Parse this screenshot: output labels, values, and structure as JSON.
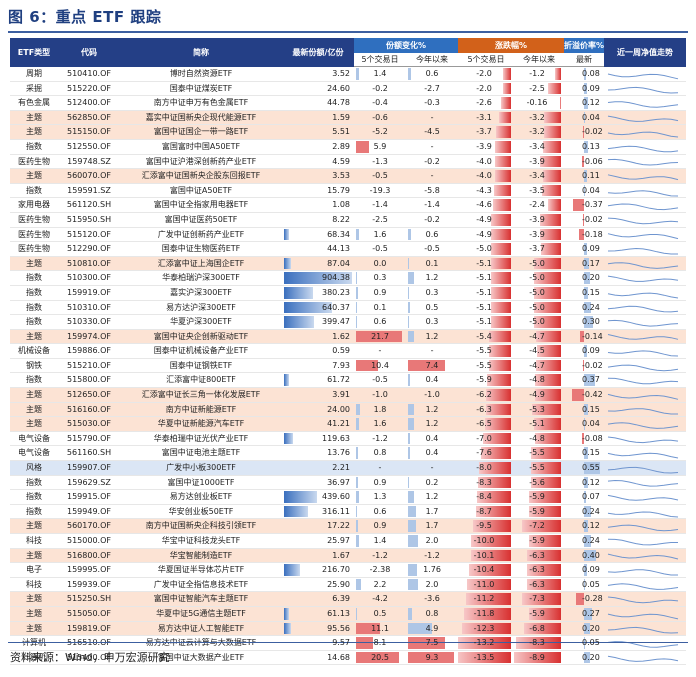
{
  "title": "图 6：重点 ETF 跟踪",
  "source": "资料来源：Wind，申万宏源研究",
  "headers": {
    "type": "ETF类型",
    "code": "代码",
    "name": "简称",
    "shares": "最新份额/亿份",
    "share_change": "份额变化%",
    "pct_change": "涨跌幅%",
    "premium": "折溢价率%",
    "trend": "近一周净值走势",
    "d5": "5个交易日",
    "ytd": "今年以来",
    "d5b": "5个交易日",
    "ytdb": "今年以来",
    "latest": "最新"
  },
  "colors": {
    "header": "#243f86",
    "blue_header": "#2f6fbf",
    "orange_header": "#d2611a",
    "highlight_row": "#fce3d4",
    "blue_row": "#dbe6f5"
  },
  "rows": [
    {
      "type": "周期",
      "code": "510410.OF",
      "name": "博时自然资源ETF",
      "shares": "3.52",
      "s5": "1.4",
      "sytd": "0.6",
      "p5": "-2.0",
      "pytd": "-1.2",
      "prem": "0.08",
      "hl": ""
    },
    {
      "type": "采掘",
      "code": "515220.OF",
      "name": "国泰中证煤炭ETF",
      "shares": "24.60",
      "s5": "-0.2",
      "sytd": "-2.7",
      "p5": "-2.0",
      "pytd": "-2.5",
      "prem": "0.09",
      "hl": ""
    },
    {
      "type": "有色金属",
      "code": "512400.OF",
      "name": "南方中证申万有色金属ETF",
      "shares": "44.78",
      "s5": "-0.4",
      "sytd": "-0.3",
      "p5": "-2.6",
      "pytd": "-0.16",
      "prem": "0.12",
      "hl": ""
    },
    {
      "type": "主题",
      "code": "562850.OF",
      "name": "嘉实中证国新央企现代能源ETF",
      "shares": "1.59",
      "s5": "-0.6",
      "sytd": "-",
      "p5": "-3.1",
      "pytd": "-3.2",
      "prem": "0.04",
      "hl": "hl"
    },
    {
      "type": "主题",
      "code": "515150.OF",
      "name": "富国中证国企一带一路ETF",
      "shares": "5.51",
      "s5": "-5.2",
      "sytd": "-4.5",
      "p5": "-3.7",
      "pytd": "-3.2",
      "prem": "-0.02",
      "hl": "hl"
    },
    {
      "type": "指数",
      "code": "512550.OF",
      "name": "富国富时中国A50ETF",
      "shares": "2.89",
      "s5": "5.9",
      "sytd": "-",
      "p5": "-3.9",
      "pytd": "-3.4",
      "prem": "0.13",
      "hl": ""
    },
    {
      "type": "医药生物",
      "code": "159748.SZ",
      "name": "富国中证沪港深创新药产业ETF",
      "shares": "4.59",
      "s5": "-1.3",
      "sytd": "-0.2",
      "p5": "-4.0",
      "pytd": "-3.9",
      "prem": "-0.06",
      "hl": ""
    },
    {
      "type": "主题",
      "code": "560070.OF",
      "name": "汇添富中证国新央企股东回报ETF",
      "shares": "3.53",
      "s5": "-0.5",
      "sytd": "-",
      "p5": "-4.0",
      "pytd": "-3.4",
      "prem": "0.11",
      "hl": "hl"
    },
    {
      "type": "指数",
      "code": "159591.SZ",
      "name": "富国中证A50ETF",
      "shares": "15.79",
      "s5": "-19.3",
      "sytd": "-5.8",
      "p5": "-4.3",
      "pytd": "-3.5",
      "prem": "0.04",
      "hl": ""
    },
    {
      "type": "家用电器",
      "code": "561120.SH",
      "name": "富国中证全指家用电器ETF",
      "shares": "1.08",
      "s5": "-1.4",
      "sytd": "-1.4",
      "p5": "-4.6",
      "pytd": "-2.4",
      "prem": "-0.37",
      "hl": ""
    },
    {
      "type": "医药生物",
      "code": "515950.SH",
      "name": "富国中证医药50ETF",
      "shares": "8.22",
      "s5": "-2.5",
      "sytd": "-0.2",
      "p5": "-4.9",
      "pytd": "-3.9",
      "prem": "-0.02",
      "hl": ""
    },
    {
      "type": "医药生物",
      "code": "515120.OF",
      "name": "广发中证创新药产业ETF",
      "shares": "68.34",
      "s5": "1.6",
      "sytd": "0.6",
      "p5": "-4.9",
      "pytd": "-3.9",
      "prem": "-0.18",
      "hl": ""
    },
    {
      "type": "医药生物",
      "code": "512290.OF",
      "name": "国泰中证生物医药ETF",
      "shares": "44.13",
      "s5": "-0.5",
      "sytd": "-0.5",
      "p5": "-5.0",
      "pytd": "-3.7",
      "prem": "0.09",
      "hl": ""
    },
    {
      "type": "主题",
      "code": "510810.OF",
      "name": "汇添富中证上海国企ETF",
      "shares": "87.04",
      "s5": "0.0",
      "sytd": "0.1",
      "p5": "-5.1",
      "pytd": "-5.0",
      "prem": "0.17",
      "hl": "hl"
    },
    {
      "type": "指数",
      "code": "510300.OF",
      "name": "华泰柏瑞沪深300ETF",
      "shares": "904.38",
      "s5": "0.3",
      "sytd": "1.2",
      "p5": "-5.1",
      "pytd": "-5.0",
      "prem": "0.20",
      "hl": ""
    },
    {
      "type": "指数",
      "code": "159919.OF",
      "name": "嘉实沪深300ETF",
      "shares": "380.23",
      "s5": "0.9",
      "sytd": "0.3",
      "p5": "-5.1",
      "pytd": "-5.0",
      "prem": "0.15",
      "hl": ""
    },
    {
      "type": "指数",
      "code": "510310.OF",
      "name": "易方达沪深300ETF",
      "shares": "640.37",
      "s5": "0.1",
      "sytd": "0.5",
      "p5": "-5.1",
      "pytd": "-5.0",
      "prem": "0.24",
      "hl": ""
    },
    {
      "type": "指数",
      "code": "510330.OF",
      "name": "华夏沪深300ETF",
      "shares": "399.47",
      "s5": "0.6",
      "sytd": "0.3",
      "p5": "-5.1",
      "pytd": "-5.0",
      "prem": "0.30",
      "hl": ""
    },
    {
      "type": "主题",
      "code": "159974.OF",
      "name": "富国中证央企创新驱动ETF",
      "shares": "1.62",
      "s5": "21.7",
      "sytd": "1.2",
      "p5": "-5.4",
      "pytd": "-4.7",
      "prem": "-0.14",
      "hl": "hl"
    },
    {
      "type": "机械设备",
      "code": "159886.OF",
      "name": "国泰中证机械设备产业ETF",
      "shares": "0.59",
      "s5": "-",
      "sytd": "-",
      "p5": "-5.5",
      "pytd": "-4.5",
      "prem": "0.09",
      "hl": ""
    },
    {
      "type": "钢铁",
      "code": "515210.OF",
      "name": "国泰中证钢铁ETF",
      "shares": "7.93",
      "s5": "10.4",
      "sytd": "7.4",
      "p5": "-5.5",
      "pytd": "-4.7",
      "prem": "-0.02",
      "hl": ""
    },
    {
      "type": "指数",
      "code": "515800.OF",
      "name": "汇添富中证800ETF",
      "shares": "61.72",
      "s5": "-0.5",
      "sytd": "0.4",
      "p5": "-5.9",
      "pytd": "-4.8",
      "prem": "0.37",
      "hl": ""
    },
    {
      "type": "主题",
      "code": "512650.OF",
      "name": "汇添富中证长三角一体化发展ETF",
      "shares": "3.91",
      "s5": "-1.0",
      "sytd": "-1.0",
      "p5": "-6.2",
      "pytd": "-4.9",
      "prem": "-0.42",
      "hl": "hl"
    },
    {
      "type": "主题",
      "code": "516160.OF",
      "name": "南方中证新能源ETF",
      "shares": "24.00",
      "s5": "1.8",
      "sytd": "1.2",
      "p5": "-6.3",
      "pytd": "-5.3",
      "prem": "0.15",
      "hl": "hl"
    },
    {
      "type": "主题",
      "code": "515030.OF",
      "name": "华夏中证新能源汽车ETF",
      "shares": "41.21",
      "s5": "1.6",
      "sytd": "1.2",
      "p5": "-6.5",
      "pytd": "-5.1",
      "prem": "0.04",
      "hl": "hl"
    },
    {
      "type": "电气设备",
      "code": "515790.OF",
      "name": "华泰柏瑞中证光伏产业ETF",
      "shares": "119.63",
      "s5": "-1.2",
      "sytd": "0.4",
      "p5": "-7.0",
      "pytd": "-4.8",
      "prem": "-0.08",
      "hl": ""
    },
    {
      "type": "电气设备",
      "code": "561160.SH",
      "name": "富国中证电池主题ETF",
      "shares": "13.76",
      "s5": "0.8",
      "sytd": "0.4",
      "p5": "-7.6",
      "pytd": "-5.5",
      "prem": "0.15",
      "hl": ""
    },
    {
      "type": "风格",
      "code": "159907.OF",
      "name": "广发中小板300ETF",
      "shares": "2.21",
      "s5": "-",
      "sytd": "-",
      "p5": "-8.0",
      "pytd": "-5.5",
      "prem": "0.55",
      "hl": "blue"
    },
    {
      "type": "指数",
      "code": "159629.SZ",
      "name": "富国中证1000ETF",
      "shares": "36.97",
      "s5": "0.9",
      "sytd": "0.2",
      "p5": "-8.3",
      "pytd": "-5.6",
      "prem": "0.12",
      "hl": ""
    },
    {
      "type": "指数",
      "code": "159915.OF",
      "name": "易方达创业板ETF",
      "shares": "439.60",
      "s5": "1.3",
      "sytd": "1.2",
      "p5": "-8.4",
      "pytd": "-5.9",
      "prem": "0.07",
      "hl": ""
    },
    {
      "type": "指数",
      "code": "159949.OF",
      "name": "华安创业板50ETF",
      "shares": "316.11",
      "s5": "0.6",
      "sytd": "1.7",
      "p5": "-8.7",
      "pytd": "-5.9",
      "prem": "0.24",
      "hl": ""
    },
    {
      "type": "主题",
      "code": "560170.OF",
      "name": "南方中证国新央企科技引领ETF",
      "shares": "17.22",
      "s5": "0.9",
      "sytd": "1.7",
      "p5": "-9.5",
      "pytd": "-7.2",
      "prem": "0.12",
      "hl": "hl"
    },
    {
      "type": "科技",
      "code": "515000.OF",
      "name": "华宝中证科技龙头ETF",
      "shares": "25.97",
      "s5": "1.4",
      "sytd": "2.0",
      "p5": "-10.0",
      "pytd": "-5.9",
      "prem": "0.24",
      "hl": ""
    },
    {
      "type": "主题",
      "code": "516800.OF",
      "name": "华宝智能制造ETF",
      "shares": "1.67",
      "s5": "-1.2",
      "sytd": "-1.2",
      "p5": "-10.1",
      "pytd": "-6.3",
      "prem": "0.40",
      "hl": "hl"
    },
    {
      "type": "电子",
      "code": "159995.OF",
      "name": "华夏国证半导体芯片ETF",
      "shares": "216.70",
      "s5": "-2.38",
      "sytd": "1.76",
      "p5": "-10.4",
      "pytd": "-6.3",
      "prem": "0.09",
      "hl": ""
    },
    {
      "type": "科技",
      "code": "159939.OF",
      "name": "广发中证全指信息技术ETF",
      "shares": "25.90",
      "s5": "2.2",
      "sytd": "2.0",
      "p5": "-11.0",
      "pytd": "-6.3",
      "prem": "0.05",
      "hl": ""
    },
    {
      "type": "主题",
      "code": "515250.SH",
      "name": "富国中证智能汽车主题ETF",
      "shares": "6.39",
      "s5": "-4.2",
      "sytd": "-3.6",
      "p5": "-11.2",
      "pytd": "-7.3",
      "prem": "-0.28",
      "hl": "hl"
    },
    {
      "type": "主题",
      "code": "515050.OF",
      "name": "华夏中证5G通信主题ETF",
      "shares": "61.13",
      "s5": "0.5",
      "sytd": "0.8",
      "p5": "-11.8",
      "pytd": "-5.9",
      "prem": "0.27",
      "hl": "hl"
    },
    {
      "type": "主题",
      "code": "159819.OF",
      "name": "易方达中证人工智能ETF",
      "shares": "95.56",
      "s5": "11.1",
      "sytd": "4.9",
      "p5": "-12.3",
      "pytd": "-6.8",
      "prem": "0.20",
      "hl": "hl"
    },
    {
      "type": "计算机",
      "code": "516510.OF",
      "name": "易方达中证云计算与大数据ETF",
      "shares": "9.57",
      "s5": "8.1",
      "sytd": "7.5",
      "p5": "-13.2",
      "pytd": "-8.3",
      "prem": "0.05",
      "hl": ""
    },
    {
      "type": "计算机",
      "code": "515400.OF",
      "name": "富国中证大数据产业ETF",
      "shares": "14.68",
      "s5": "20.5",
      "sytd": "9.3",
      "p5": "-13.5",
      "pytd": "-8.9",
      "prem": "0.20",
      "hl": ""
    }
  ]
}
